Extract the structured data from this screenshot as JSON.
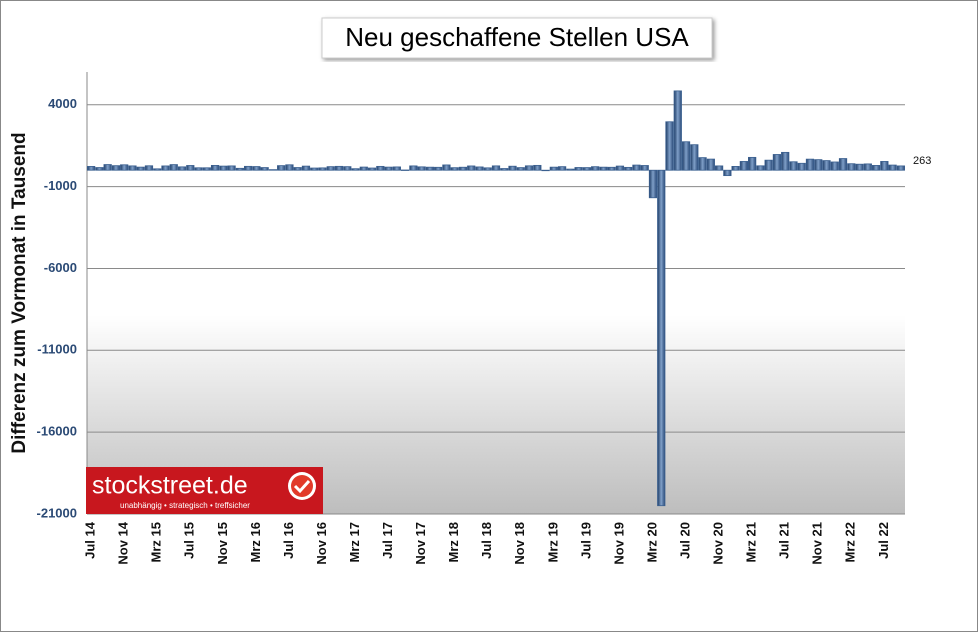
{
  "chart_data": {
    "type": "bar",
    "title": "Neu geschaffene Stellen USA",
    "y_label": "Differenz zum Vormonat in Tausend",
    "categories": [
      "Jul 14",
      null,
      null,
      null,
      "Nov 14",
      null,
      null,
      null,
      "Mrz 15",
      null,
      null,
      null,
      "Jul 15",
      null,
      null,
      null,
      "Nov 15",
      null,
      null,
      null,
      "Mrz 16",
      null,
      null,
      null,
      "Jul 16",
      null,
      null,
      null,
      "Nov 16",
      null,
      null,
      null,
      "Mrz 17",
      null,
      null,
      null,
      "Jul 17",
      null,
      null,
      null,
      "Nov 17",
      null,
      null,
      null,
      "Mrz 18",
      null,
      null,
      null,
      "Jul 18",
      null,
      null,
      null,
      "Nov 18",
      null,
      null,
      null,
      "Mrz 19",
      null,
      null,
      null,
      "Jul 19",
      null,
      null,
      null,
      "Nov 19",
      null,
      null,
      null,
      "Mrz 20",
      null,
      null,
      null,
      "Jul 20",
      null,
      null,
      null,
      "Nov 20",
      null,
      null,
      null,
      "Mrz 21",
      null,
      null,
      null,
      "Jul 21",
      null,
      null,
      null,
      "Nov 21",
      null,
      null,
      null,
      "Mrz 22",
      null,
      null,
      null,
      "Jul 22",
      null,
      null
    ],
    "values": [
      232,
      164,
      347,
      279,
      332,
      265,
      190,
      272,
      86,
      262,
      344,
      206,
      290,
      150,
      149,
      295,
      252,
      264,
      117,
      237,
      225,
      163,
      36,
      281,
      332,
      165,
      251,
      134,
      144,
      219,
      237,
      219,
      94,
      193,
      135,
      235,
      190,
      202,
      14,
      264,
      207,
      186,
      179,
      323,
      156,
      183,
      261,
      201,
      146,
      266,
      104,
      245,
      160,
      269,
      296,
      1,
      188,
      219,
      69,
      167,
      161,
      217,
      187,
      180,
      254,
      175,
      315,
      289,
      -1683,
      -20493,
      2960,
      4846,
      1740,
      1560,
      770,
      680,
      264,
      -330,
      233,
      536,
      785,
      269,
      614,
      962,
      1091,
      517,
      424,
      677,
      647,
      588,
      504,
      714,
      398,
      368,
      386,
      293,
      537,
      315,
      263
    ],
    "color": "#3a5f8f",
    "ylim": [
      -21000,
      6000
    ],
    "yticks": [
      -21000,
      -16000,
      -11000,
      -6000,
      -1000,
      4000
    ],
    "grid": true
  },
  "logo": {
    "name": "stockstreet.de",
    "tagline": "unabhängig • strategisch • treffsicher"
  }
}
